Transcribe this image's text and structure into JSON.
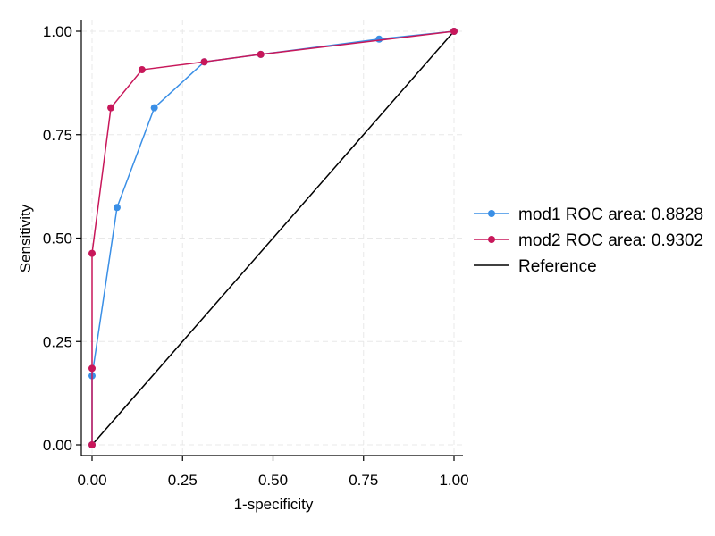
{
  "chart_data": {
    "type": "line",
    "title": "",
    "xlabel": "1-specificity",
    "ylabel": "Sensitivity",
    "xlim": [
      0,
      1
    ],
    "ylim": [
      0,
      1
    ],
    "x_ticks": [
      "0.00",
      "0.25",
      "0.50",
      "0.75",
      "1.00"
    ],
    "y_ticks": [
      "0.00",
      "0.25",
      "0.50",
      "0.75",
      "1.00"
    ],
    "grid": true,
    "legend_position": "right",
    "series": [
      {
        "name": "mod1 ROC area: 0.8828",
        "color": "#3a8fe6",
        "markers": true,
        "x": [
          0.0,
          0.0,
          0.069,
          0.172,
          0.31,
          0.466,
          0.793,
          1.0
        ],
        "y": [
          0.0,
          0.167,
          0.574,
          0.815,
          0.926,
          0.944,
          0.981,
          1.0
        ]
      },
      {
        "name": "mod2 ROC area: 0.9302",
        "color": "#c8175a",
        "markers": true,
        "x": [
          0.0,
          0.0,
          0.0,
          0.052,
          0.138,
          0.31,
          0.466,
          1.0
        ],
        "y": [
          0.0,
          0.185,
          0.463,
          0.815,
          0.907,
          0.926,
          0.944,
          1.0
        ]
      },
      {
        "name": "Reference",
        "color": "#000000",
        "markers": false,
        "x": [
          0,
          1
        ],
        "y": [
          0,
          1
        ]
      }
    ]
  }
}
